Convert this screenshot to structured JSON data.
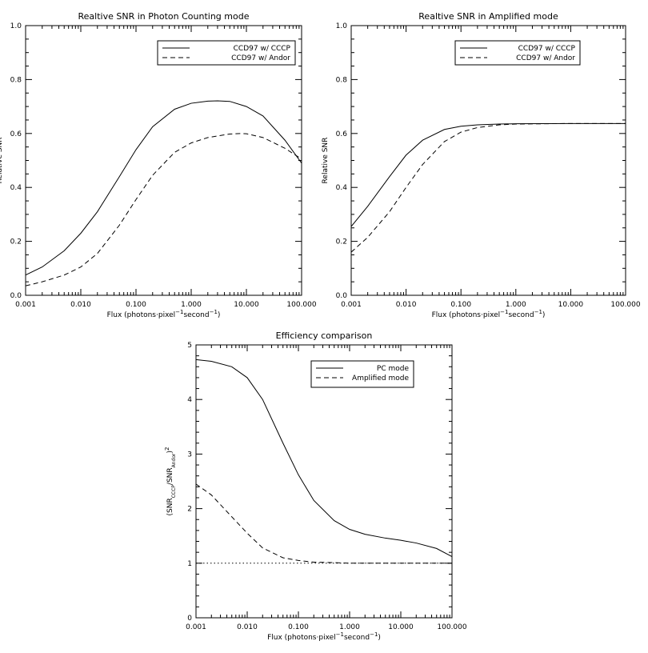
{
  "chart_data": [
    {
      "type": "line",
      "title": "Realtive SNR in Photon Counting mode",
      "xlabel_parts": [
        "Flux (photons·pixel",
        "−1",
        "second",
        "−1",
        ")"
      ],
      "ylabel": "Relative SNR",
      "x_scale": "log",
      "xlim": [
        0.001,
        100
      ],
      "ylim": [
        0.0,
        1.0
      ],
      "x_ticks": [
        0.001,
        0.01,
        0.1,
        1,
        10,
        100
      ],
      "x_tick_labels": [
        "0.001",
        "0.010",
        "0.100",
        "1.000",
        "10.000",
        "100.000"
      ],
      "y_ticks": [
        0.0,
        0.2,
        0.4,
        0.6,
        0.8,
        1.0
      ],
      "y_tick_labels": [
        "0.0",
        "0.2",
        "0.4",
        "0.6",
        "0.8",
        "1.0"
      ],
      "legend_position": "top-right",
      "series": [
        {
          "name": "CCD97 w/ CCCP",
          "style": "solid",
          "x": [
            0.001,
            0.002,
            0.005,
            0.01,
            0.02,
            0.05,
            0.1,
            0.2,
            0.5,
            1,
            2,
            3,
            5,
            10,
            20,
            50,
            100
          ],
          "y": [
            0.075,
            0.105,
            0.165,
            0.23,
            0.31,
            0.44,
            0.54,
            0.625,
            0.69,
            0.712,
            0.72,
            0.721,
            0.719,
            0.7,
            0.665,
            0.575,
            0.49
          ]
        },
        {
          "name": "CCD97 w/ Andor",
          "style": "dashed",
          "x": [
            0.001,
            0.002,
            0.005,
            0.01,
            0.02,
            0.05,
            0.1,
            0.2,
            0.5,
            1,
            2,
            5,
            8,
            10,
            20,
            50,
            100
          ],
          "y": [
            0.035,
            0.05,
            0.075,
            0.105,
            0.155,
            0.26,
            0.355,
            0.445,
            0.53,
            0.565,
            0.585,
            0.598,
            0.6,
            0.599,
            0.585,
            0.545,
            0.505
          ]
        }
      ]
    },
    {
      "type": "line",
      "title": "Realtive SNR in Amplified mode",
      "xlabel_parts": [
        "Flux (photons·pixel",
        "−1",
        "second",
        "−1",
        ")"
      ],
      "ylabel": "Relative SNR",
      "x_scale": "log",
      "xlim": [
        0.001,
        100
      ],
      "ylim": [
        0.0,
        1.0
      ],
      "x_ticks": [
        0.001,
        0.01,
        0.1,
        1,
        10,
        100
      ],
      "x_tick_labels": [
        "0.001",
        "0.010",
        "0.100",
        "1.000",
        "10.000",
        "100.000"
      ],
      "y_ticks": [
        0.0,
        0.2,
        0.4,
        0.6,
        0.8,
        1.0
      ],
      "y_tick_labels": [
        "0.0",
        "0.2",
        "0.4",
        "0.6",
        "0.8",
        "1.0"
      ],
      "legend_position": "top-right",
      "series": [
        {
          "name": "CCD97 w/ CCCP",
          "style": "solid",
          "x": [
            0.001,
            0.002,
            0.005,
            0.01,
            0.02,
            0.05,
            0.1,
            0.2,
            0.5,
            1,
            10,
            100
          ],
          "y": [
            0.255,
            0.33,
            0.44,
            0.52,
            0.575,
            0.615,
            0.627,
            0.632,
            0.635,
            0.636,
            0.637,
            0.637
          ]
        },
        {
          "name": "CCD97 w/ Andor",
          "style": "dashed",
          "x": [
            0.001,
            0.002,
            0.005,
            0.01,
            0.02,
            0.05,
            0.1,
            0.2,
            0.5,
            1,
            10,
            100
          ],
          "y": [
            0.16,
            0.215,
            0.31,
            0.4,
            0.485,
            0.57,
            0.605,
            0.622,
            0.632,
            0.635,
            0.637,
            0.637
          ]
        }
      ]
    },
    {
      "type": "line",
      "title": "Efficiency comparison",
      "xlabel_parts": [
        "Flux (photons·pixel",
        "−1",
        "second",
        "−1",
        ")"
      ],
      "ylabel_parts": [
        "(SNR",
        "CCCP",
        "/SNR",
        "Andor",
        ")",
        "2"
      ],
      "x_scale": "log",
      "xlim": [
        0.001,
        100
      ],
      "ylim": [
        0,
        5
      ],
      "x_ticks": [
        0.001,
        0.01,
        0.1,
        1,
        10,
        100
      ],
      "x_tick_labels": [
        "0.001",
        "0.010",
        "0.100",
        "1.000",
        "10.000",
        "100.000"
      ],
      "y_ticks": [
        0,
        1,
        2,
        3,
        4,
        5
      ],
      "y_tick_labels": [
        "0",
        "1",
        "2",
        "3",
        "4",
        "5"
      ],
      "legend_position": "top-right",
      "reference_line": {
        "y": 1,
        "style": "dotted"
      },
      "series": [
        {
          "name": "PC mode",
          "style": "solid",
          "x": [
            0.001,
            0.002,
            0.005,
            0.01,
            0.02,
            0.05,
            0.1,
            0.2,
            0.5,
            1,
            2,
            5,
            10,
            20,
            50,
            100
          ],
          "y": [
            4.73,
            4.7,
            4.6,
            4.4,
            4.0,
            3.2,
            2.62,
            2.15,
            1.78,
            1.62,
            1.53,
            1.46,
            1.42,
            1.37,
            1.27,
            1.12
          ]
        },
        {
          "name": "Amplified mode",
          "style": "dashed",
          "x": [
            0.001,
            0.002,
            0.005,
            0.01,
            0.02,
            0.05,
            0.1,
            0.2,
            0.5,
            1,
            10,
            100
          ],
          "y": [
            2.45,
            2.25,
            1.85,
            1.55,
            1.28,
            1.1,
            1.05,
            1.02,
            1.01,
            1.0,
            1.0,
            1.0
          ]
        }
      ]
    }
  ]
}
